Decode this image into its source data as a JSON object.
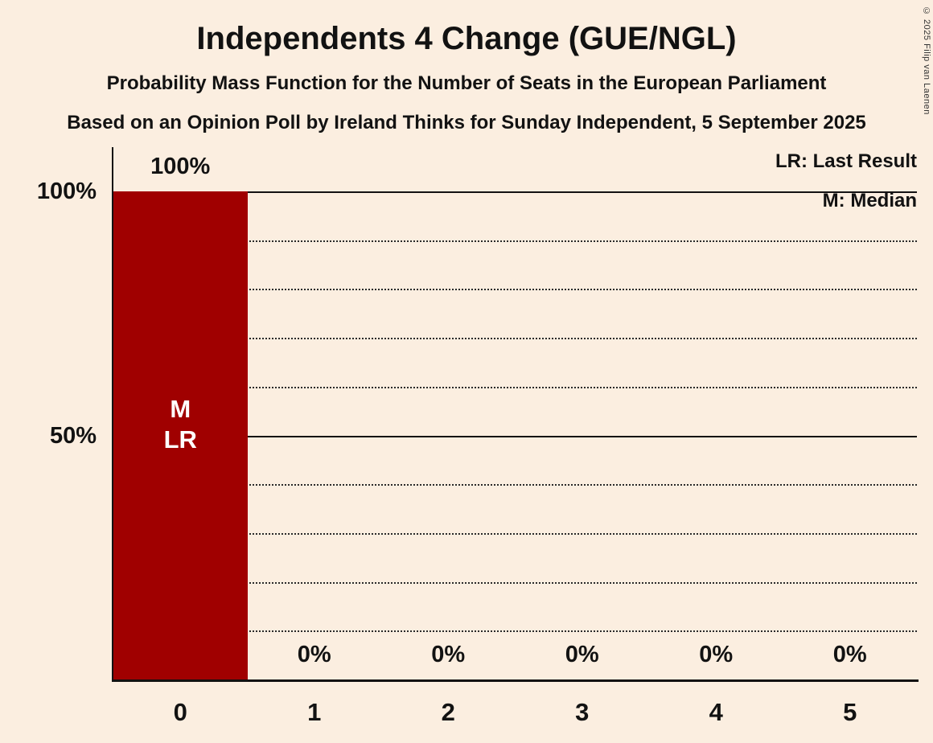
{
  "title": "Independents 4 Change (GUE/NGL)",
  "subtitle": "Probability Mass Function for the Number of Seats in the European Parliament",
  "source_line": "Based on an Opinion Poll by Ireland Thinks for Sunday Independent, 5 September 2025",
  "copyright": "© 2025 Filip van Laenen",
  "legend": {
    "last_result": "LR: Last Result",
    "median": "M: Median"
  },
  "colors": {
    "background": "#fbeee0",
    "bar": "#a00000",
    "text": "#121212",
    "bar_label": "#ffffff"
  },
  "chart_data": {
    "type": "bar",
    "title": "Independents 4 Change (GUE/NGL)",
    "categories": [
      "0",
      "1",
      "2",
      "3",
      "4",
      "5"
    ],
    "values": [
      100,
      0,
      0,
      0,
      0,
      0
    ],
    "value_labels": [
      "100%",
      "0%",
      "0%",
      "0%",
      "0%",
      "0%"
    ],
    "xlabel": "",
    "ylabel": "",
    "ylim": [
      0,
      100
    ],
    "yticks": [
      {
        "value": 100,
        "label": "100%"
      },
      {
        "value": 50,
        "label": "50%"
      }
    ],
    "gridlines": {
      "solid": [
        100,
        50
      ],
      "dotted": [
        90,
        80,
        70,
        60,
        40,
        30,
        20,
        10
      ]
    },
    "legend_position": "top-right",
    "annotations": {
      "seat_index": 0,
      "bar_inner_labels": [
        "M",
        "LR"
      ],
      "median_marker": "M",
      "last_result_marker": "LR"
    }
  }
}
